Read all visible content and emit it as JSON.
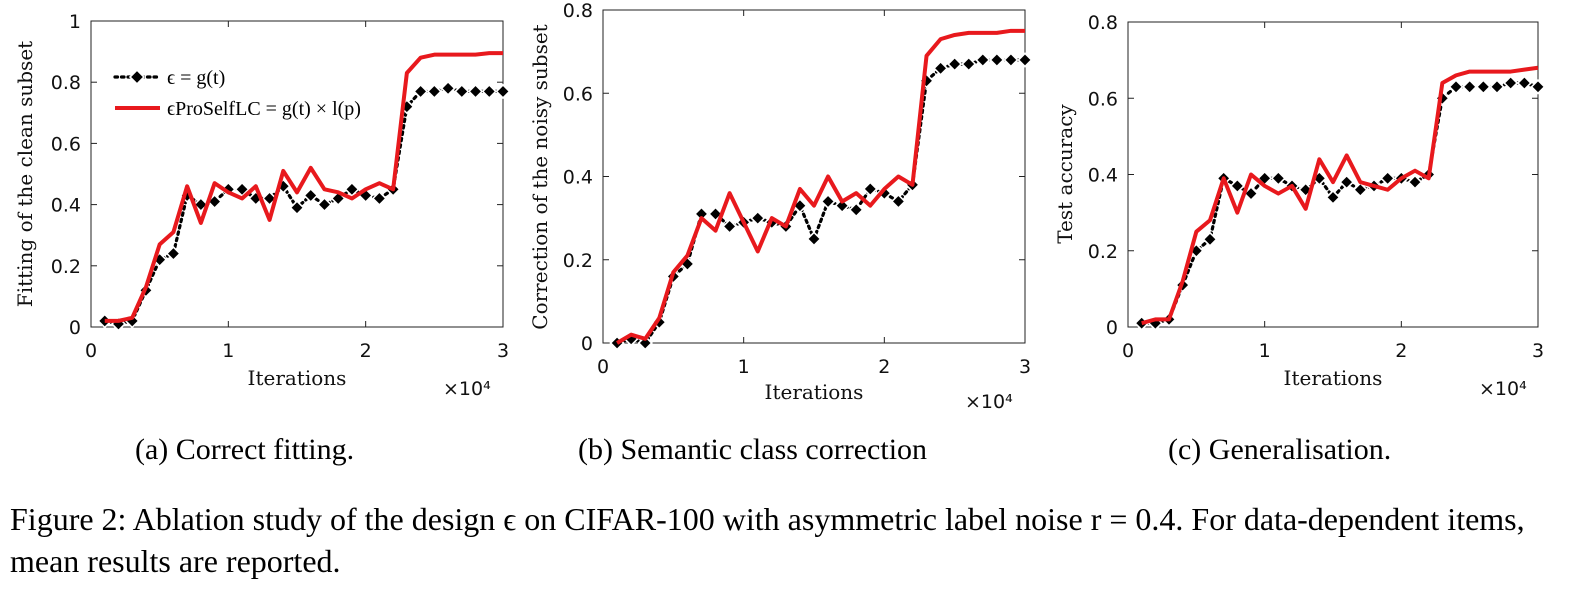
{
  "figure_caption": "Figure 2: Ablation study of the design ϵ on CIFAR-100 with asymmetric label noise r = 0.4. For data-dependent items, mean results are reported.",
  "legend": {
    "entries": [
      {
        "label": "ϵ = g(t)",
        "color": "#000000",
        "style": "dotted-diamond"
      },
      {
        "label": "ϵProSelfLC = g(t) × l(p)",
        "color": "#e8191d",
        "style": "solid"
      }
    ]
  },
  "chart_data": [
    {
      "type": "line",
      "subcaption": "(a) Correct fitting.",
      "xlabel": "Iterations",
      "ylabel": "Fitting of the clean subset",
      "x_multiplier": "×10⁴",
      "xlim": [
        0,
        3
      ],
      "ylim": [
        0,
        1
      ],
      "xticks": [
        "0",
        "1",
        "2",
        "3"
      ],
      "yticks": [
        "0",
        "0.2",
        "0.4",
        "0.6",
        "0.8",
        "1"
      ],
      "ytick_values": [
        0,
        0.2,
        0.4,
        0.6,
        0.8,
        1
      ],
      "legend_position": "top-left",
      "x": [
        0.1,
        0.2,
        0.3,
        0.4,
        0.5,
        0.6,
        0.7,
        0.8,
        0.9,
        1.0,
        1.1,
        1.2,
        1.3,
        1.4,
        1.5,
        1.6,
        1.7,
        1.8,
        1.9,
        2.0,
        2.1,
        2.2,
        2.3,
        2.4,
        2.5,
        2.6,
        2.7,
        2.8,
        2.9,
        3.0
      ],
      "series": [
        {
          "name": "ϵ = g(t)",
          "values": [
            0.02,
            0.01,
            0.02,
            0.12,
            0.22,
            0.24,
            0.43,
            0.4,
            0.41,
            0.45,
            0.45,
            0.42,
            0.42,
            0.46,
            0.39,
            0.43,
            0.4,
            0.42,
            0.45,
            0.43,
            0.42,
            0.45,
            0.72,
            0.77,
            0.77,
            0.78,
            0.77,
            0.77,
            0.77,
            0.77
          ]
        },
        {
          "name": "ϵProSelfLC = g(t) × l(p)",
          "values": [
            0.02,
            0.02,
            0.03,
            0.13,
            0.27,
            0.31,
            0.46,
            0.34,
            0.47,
            0.44,
            0.42,
            0.46,
            0.35,
            0.51,
            0.44,
            0.52,
            0.45,
            0.44,
            0.42,
            0.45,
            0.47,
            0.45,
            0.83,
            0.88,
            0.89,
            0.89,
            0.89,
            0.89,
            0.895,
            0.895
          ]
        }
      ]
    },
    {
      "type": "line",
      "subcaption": "(b) Semantic class correction",
      "xlabel": "Iterations",
      "ylabel": "Correction of the noisy subset",
      "x_multiplier": "×10⁴",
      "xlim": [
        0,
        3
      ],
      "ylim": [
        0,
        0.8
      ],
      "xticks": [
        "0",
        "1",
        "2",
        "3"
      ],
      "yticks": [
        "0",
        "0.2",
        "0.4",
        "0.6",
        "0.8"
      ],
      "ytick_values": [
        0,
        0.2,
        0.4,
        0.6,
        0.8
      ],
      "x": [
        0.1,
        0.2,
        0.3,
        0.4,
        0.5,
        0.6,
        0.7,
        0.8,
        0.9,
        1.0,
        1.1,
        1.2,
        1.3,
        1.4,
        1.5,
        1.6,
        1.7,
        1.8,
        1.9,
        2.0,
        2.1,
        2.2,
        2.3,
        2.4,
        2.5,
        2.6,
        2.7,
        2.8,
        2.9,
        3.0
      ],
      "series": [
        {
          "name": "ϵ = g(t)",
          "values": [
            0.0,
            0.01,
            0.0,
            0.05,
            0.16,
            0.19,
            0.31,
            0.31,
            0.28,
            0.29,
            0.3,
            0.29,
            0.28,
            0.33,
            0.25,
            0.34,
            0.33,
            0.32,
            0.37,
            0.36,
            0.34,
            0.38,
            0.63,
            0.66,
            0.67,
            0.67,
            0.68,
            0.68,
            0.68,
            0.68
          ]
        },
        {
          "name": "ϵProSelfLC = g(t) × l(p)",
          "values": [
            0.0,
            0.02,
            0.01,
            0.06,
            0.17,
            0.21,
            0.3,
            0.27,
            0.36,
            0.29,
            0.22,
            0.3,
            0.28,
            0.37,
            0.33,
            0.4,
            0.34,
            0.36,
            0.33,
            0.37,
            0.4,
            0.38,
            0.69,
            0.73,
            0.74,
            0.745,
            0.745,
            0.745,
            0.75,
            0.75
          ]
        }
      ]
    },
    {
      "type": "line",
      "subcaption": "(c) Generalisation.",
      "xlabel": "Iterations",
      "ylabel": "Test accuracy",
      "x_multiplier": "×10⁴",
      "xlim": [
        0,
        3
      ],
      "ylim": [
        0,
        0.8
      ],
      "xticks": [
        "0",
        "1",
        "2",
        "3"
      ],
      "yticks": [
        "0",
        "0.2",
        "0.4",
        "0.6",
        "0.8"
      ],
      "ytick_values": [
        0,
        0.2,
        0.4,
        0.6,
        0.8
      ],
      "x": [
        0.1,
        0.2,
        0.3,
        0.4,
        0.5,
        0.6,
        0.7,
        0.8,
        0.9,
        1.0,
        1.1,
        1.2,
        1.3,
        1.4,
        1.5,
        1.6,
        1.7,
        1.8,
        1.9,
        2.0,
        2.1,
        2.2,
        2.3,
        2.4,
        2.5,
        2.6,
        2.7,
        2.8,
        2.9,
        3.0
      ],
      "series": [
        {
          "name": "ϵ = g(t)",
          "values": [
            0.01,
            0.01,
            0.02,
            0.11,
            0.2,
            0.23,
            0.39,
            0.37,
            0.35,
            0.39,
            0.39,
            0.37,
            0.36,
            0.39,
            0.34,
            0.38,
            0.36,
            0.37,
            0.39,
            0.39,
            0.38,
            0.4,
            0.6,
            0.63,
            0.63,
            0.63,
            0.63,
            0.64,
            0.64,
            0.63
          ]
        },
        {
          "name": "ϵProSelfLC = g(t) × l(p)",
          "values": [
            0.01,
            0.02,
            0.02,
            0.12,
            0.25,
            0.28,
            0.39,
            0.3,
            0.4,
            0.37,
            0.35,
            0.37,
            0.31,
            0.44,
            0.38,
            0.45,
            0.38,
            0.37,
            0.36,
            0.39,
            0.41,
            0.39,
            0.64,
            0.66,
            0.67,
            0.67,
            0.67,
            0.67,
            0.675,
            0.68
          ]
        }
      ]
    }
  ]
}
